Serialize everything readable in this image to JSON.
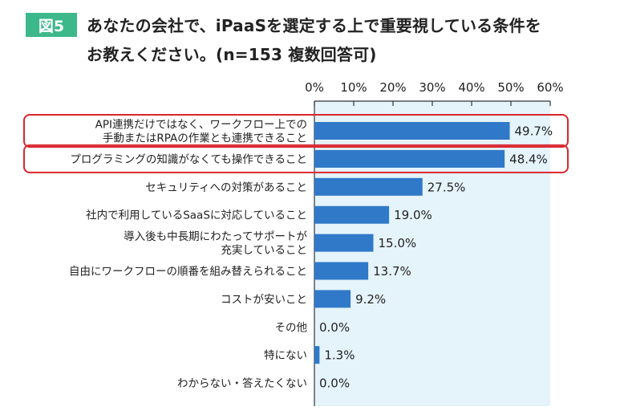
{
  "figure": {
    "badge": "図5",
    "title_line1": "あなたの会社で、iPaaSを選定する上で重要視している条件を",
    "title_line2": "お教えください。(n=153 複数回答可)"
  },
  "colors": {
    "badge": "#3db88a",
    "bar": "#2f79c8",
    "plot_background": "#e5f3fb",
    "highlight_border": "#d9262f"
  },
  "chart_data": {
    "type": "bar",
    "orientation": "horizontal",
    "title": "あなたの会社で、iPaaSを選定する上で重要視している条件をお教えください。(n=153 複数回答可)",
    "categories": [
      [
        "API連携だけではなく、ワークフロー上での",
        "手動またはRPAの作業とも連携できること"
      ],
      [
        "プログラミングの知識がなくても操作できること"
      ],
      [
        "セキュリティへの対策があること"
      ],
      [
        "社内で利用しているSaaSに対応していること"
      ],
      [
        "導入後も中長期にわたってサポートが",
        "充実していること"
      ],
      [
        "自由にワークフローの順番を組み替えられること"
      ],
      [
        "コストが安いこと"
      ],
      [
        "その他"
      ],
      [
        "特にない"
      ],
      [
        "わからない・答えたくない"
      ]
    ],
    "values": [
      49.7,
      48.4,
      27.5,
      19.0,
      15.0,
      13.7,
      9.2,
      0.0,
      1.3,
      0.0
    ],
    "value_labels": [
      "49.7%",
      "48.4%",
      "27.5%",
      "19.0%",
      "15.0%",
      "13.7%",
      "9.2%",
      "0.0%",
      "1.3%",
      "0.0%"
    ],
    "x_ticks": [
      0,
      10,
      20,
      30,
      40,
      50,
      60
    ],
    "x_tick_labels": [
      "0%",
      "10%",
      "20%",
      "30%",
      "40%",
      "50%",
      "60%"
    ],
    "xlim": [
      0,
      60
    ],
    "axis_position": "top",
    "grid": false,
    "highlighted_categories": [
      0,
      1
    ]
  }
}
